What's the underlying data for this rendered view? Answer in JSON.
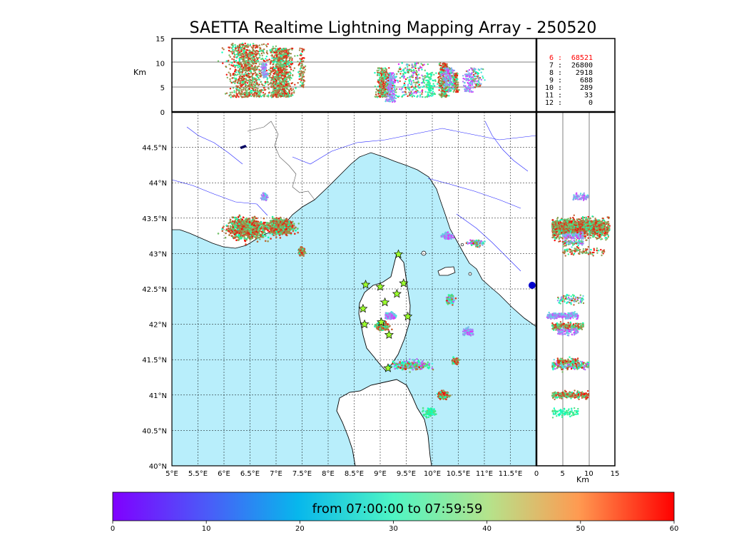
{
  "title": "SAETTA Realtime Lightning Mapping Array - 250520",
  "height_unit": "Km",
  "map": {
    "lon_range": [
      5,
      12
    ],
    "lat_range": [
      40,
      45
    ],
    "lon_ticks": [
      "5°E",
      "5.5°E",
      "6°E",
      "6.5°E",
      "7°E",
      "7.5°E",
      "8°E",
      "8.5°E",
      "9°E",
      "9.5°E",
      "10°E",
      "10.5°E",
      "11°E",
      "11.5°E"
    ],
    "lat_ticks": [
      "40°N",
      "40.5°N",
      "41°N",
      "41.5°N",
      "42°N",
      "42.5°N",
      "43°N",
      "43.5°N",
      "44°N",
      "44.5°N"
    ],
    "sea_color": "#b8eefb",
    "land_color": "#ffffff",
    "grid": "dotted"
  },
  "top_panel": {
    "y_ticks": [
      "0",
      "5",
      "10",
      "15"
    ],
    "height_range": [
      0,
      15
    ]
  },
  "right_panel": {
    "x_ticks": [
      "0",
      "5",
      "10",
      "15"
    ],
    "height_range": [
      0,
      15
    ]
  },
  "counts": [
    {
      "label": "6",
      "sep": ":",
      "value": "68521",
      "color": "#ff0000"
    },
    {
      "label": "7",
      "sep": ":",
      "value": "26800",
      "color": "#000000"
    },
    {
      "label": "8",
      "sep": ":",
      "value": "2918",
      "color": "#000000"
    },
    {
      "label": "9",
      "sep": ":",
      "value": "688",
      "color": "#000000"
    },
    {
      "label": "10",
      "sep": ":",
      "value": "289",
      "color": "#000000"
    },
    {
      "label": "11",
      "sep": ":",
      "value": "33",
      "color": "#000000"
    },
    {
      "label": "12",
      "sep": ":",
      "value": "0",
      "color": "#000000"
    }
  ],
  "colorbar": {
    "label": "from 07:00:00 to 07:59:59",
    "range": [
      0,
      60
    ],
    "ticks": [
      "0",
      "10",
      "20",
      "30",
      "40",
      "50",
      "60"
    ],
    "colormap": "rainbow"
  },
  "stations": [
    {
      "lon": 9.35,
      "lat": 42.99
    },
    {
      "lon": 8.72,
      "lat": 42.56
    },
    {
      "lon": 9.0,
      "lat": 42.53
    },
    {
      "lon": 9.45,
      "lat": 42.58
    },
    {
      "lon": 9.32,
      "lat": 42.43
    },
    {
      "lon": 9.09,
      "lat": 42.31
    },
    {
      "lon": 8.67,
      "lat": 42.22
    },
    {
      "lon": 9.53,
      "lat": 42.11
    },
    {
      "lon": 8.7,
      "lat": 42.0
    },
    {
      "lon": 9.02,
      "lat": 42.03
    },
    {
      "lon": 9.17,
      "lat": 41.85
    },
    {
      "lon": 9.15,
      "lat": 41.38
    }
  ],
  "chart_data": {
    "type": "scatter",
    "x_label": "",
    "y_label": "",
    "clusters": [
      {
        "lon": 6.45,
        "lat": 43.35,
        "spread_lon": 0.38,
        "spread_lat": 0.14,
        "alt": [
          3,
          14
        ],
        "time": "late",
        "density": "high"
      },
      {
        "lon": 7.1,
        "lat": 43.38,
        "spread_lon": 0.22,
        "spread_lat": 0.1,
        "alt": [
          3,
          13
        ],
        "time": "late",
        "density": "high"
      },
      {
        "lon": 7.5,
        "lat": 43.03,
        "spread_lon": 0.06,
        "spread_lat": 0.05,
        "alt": [
          5,
          13
        ],
        "time": "late",
        "density": "low"
      },
      {
        "lon": 6.78,
        "lat": 43.8,
        "spread_lon": 0.05,
        "spread_lat": 0.05,
        "alt": [
          7,
          10
        ],
        "time": "early",
        "density": "low"
      },
      {
        "lon": 9.2,
        "lat": 42.12,
        "spread_lon": 0.08,
        "spread_lat": 0.04,
        "alt": [
          2,
          8
        ],
        "time": "early",
        "density": "med"
      },
      {
        "lon": 9.05,
        "lat": 41.97,
        "spread_lon": 0.12,
        "spread_lat": 0.05,
        "alt": [
          3,
          9
        ],
        "time": "late",
        "density": "med"
      },
      {
        "lon": 9.6,
        "lat": 41.42,
        "spread_lon": 0.35,
        "spread_lat": 0.06,
        "alt": [
          3,
          10
        ],
        "time": "mixed",
        "density": "med"
      },
      {
        "lon": 10.22,
        "lat": 41.0,
        "spread_lon": 0.1,
        "spread_lat": 0.05,
        "alt": [
          3,
          10
        ],
        "time": "late",
        "density": "med"
      },
      {
        "lon": 9.95,
        "lat": 40.75,
        "spread_lon": 0.12,
        "spread_lat": 0.06,
        "alt": [
          3,
          8
        ],
        "time": "mid",
        "density": "low"
      },
      {
        "lon": 10.45,
        "lat": 41.48,
        "spread_lon": 0.06,
        "spread_lat": 0.04,
        "alt": [
          4,
          8
        ],
        "time": "late",
        "density": "low"
      },
      {
        "lon": 10.35,
        "lat": 42.35,
        "spread_lon": 0.08,
        "spread_lat": 0.07,
        "alt": [
          4,
          9
        ],
        "time": "mixed",
        "density": "low"
      },
      {
        "lon": 10.3,
        "lat": 43.25,
        "spread_lon": 0.1,
        "spread_lat": 0.05,
        "alt": [
          5,
          9
        ],
        "time": "early",
        "density": "low"
      },
      {
        "lon": 10.85,
        "lat": 43.15,
        "spread_lon": 0.15,
        "spread_lat": 0.05,
        "alt": [
          5,
          9
        ],
        "time": "mixed",
        "density": "low"
      },
      {
        "lon": 10.7,
        "lat": 41.9,
        "spread_lon": 0.1,
        "spread_lat": 0.05,
        "alt": [
          4,
          8
        ],
        "time": "early",
        "density": "low"
      }
    ]
  }
}
